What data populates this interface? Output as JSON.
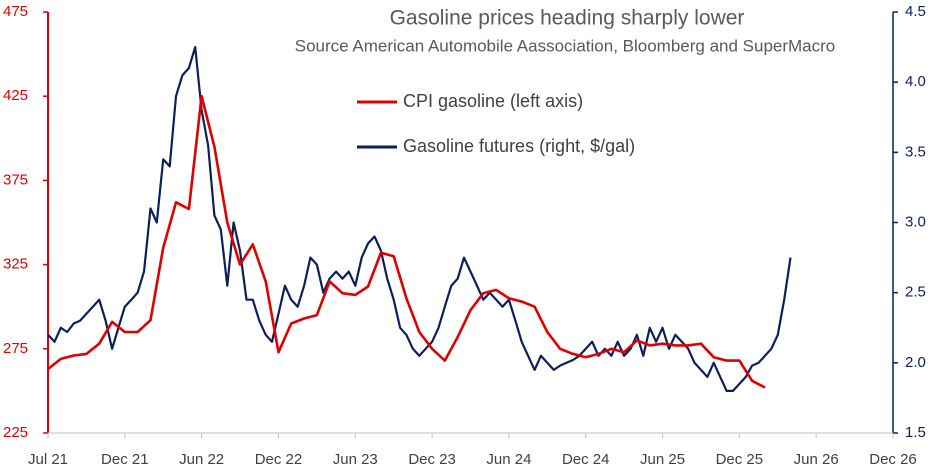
{
  "chart_data": {
    "type": "line",
    "title": "Gasoline prices heading sharply lower",
    "subtitle": "Source American Automobile Aassociation, Bloomberg and SuperMacro",
    "xlim": [
      2021.5,
      2027.0
    ],
    "xticks": [
      {
        "value": 2021.5,
        "label": "Jul 21"
      },
      {
        "value": 2022.0,
        "label": "Dec 21"
      },
      {
        "value": 2022.5,
        "label": "Jun 22"
      },
      {
        "value": 2023.0,
        "label": "Dec 22"
      },
      {
        "value": 2023.5,
        "label": "Jun 23"
      },
      {
        "value": 2024.0,
        "label": "Dec 23"
      },
      {
        "value": 2024.5,
        "label": "Jun 24"
      },
      {
        "value": 2025.0,
        "label": "Dec 24"
      },
      {
        "value": 2025.5,
        "label": "Jun 25"
      },
      {
        "value": 2026.0,
        "label": "Dec 25"
      },
      {
        "value": 2026.5,
        "label": "Jun 26"
      },
      {
        "value": 2027.0,
        "label": "Dec 26"
      }
    ],
    "ylim": [
      225,
      475
    ],
    "yticks": [
      225,
      275,
      325,
      375,
      425,
      475
    ],
    "y2lim": [
      1.5,
      4.5
    ],
    "y2ticks": [
      1.5,
      {
        "value": 2.0,
        "label": "2.0"
      },
      2.5,
      {
        "value": 3.0,
        "label": "3.0"
      },
      3.5,
      {
        "value": 4.0,
        "label": "4.0"
      },
      4.5
    ],
    "left_axis_color": "#e00000",
    "right_axis_color": "#0c1f5c",
    "series": [
      {
        "name": "CPI gasoline (left axis)",
        "color": "#e00000",
        "axis": "y",
        "x": [
          2021.5,
          2021.583,
          2021.667,
          2021.75,
          2021.833,
          2021.917,
          2022,
          2022.083,
          2022.167,
          2022.25,
          2022.333,
          2022.417,
          2022.5,
          2022.583,
          2022.667,
          2022.75,
          2022.833,
          2022.917,
          2023,
          2023.083,
          2023.167,
          2023.25,
          2023.333,
          2023.417,
          2023.5,
          2023.583,
          2023.667,
          2023.75,
          2023.833,
          2023.917,
          2024,
          2024.083,
          2024.167,
          2024.25,
          2024.333,
          2024.417,
          2024.5,
          2024.583,
          2024.667,
          2024.75,
          2024.833,
          2024.917,
          2025,
          2025.083,
          2025.167,
          2025.25,
          2025.333,
          2025.417,
          2025.5,
          2025.583,
          2025.667,
          2025.75,
          2025.833,
          2025.917,
          2026,
          2026.083,
          2026.167
        ],
        "values": [
          263,
          269,
          271,
          272,
          278,
          291,
          285,
          285,
          292,
          335,
          362,
          358,
          425,
          395,
          350,
          325,
          337,
          315,
          273,
          290,
          293,
          295,
          315,
          308,
          307,
          312,
          332,
          330,
          305,
          285,
          275,
          268,
          282,
          298,
          308,
          310,
          305,
          303,
          300,
          285,
          275,
          272,
          270,
          272,
          275,
          273,
          280,
          277,
          278,
          277,
          277,
          278,
          270,
          268,
          268,
          256,
          252
        ]
      },
      {
        "name": "Gasoline futures (right, $/gal)",
        "color": "#0c1f5c",
        "axis": "y2",
        "x": [
          2021.5,
          2021.542,
          2021.583,
          2021.625,
          2021.667,
          2021.708,
          2021.75,
          2021.792,
          2021.833,
          2021.875,
          2021.917,
          2021.958,
          2022,
          2022.042,
          2022.083,
          2022.125,
          2022.167,
          2022.208,
          2022.25,
          2022.292,
          2022.333,
          2022.375,
          2022.417,
          2022.458,
          2022.5,
          2022.542,
          2022.583,
          2022.625,
          2022.667,
          2022.708,
          2022.75,
          2022.792,
          2022.833,
          2022.875,
          2022.917,
          2022.958,
          2023,
          2023.042,
          2023.083,
          2023.125,
          2023.167,
          2023.208,
          2023.25,
          2023.292,
          2023.333,
          2023.375,
          2023.417,
          2023.458,
          2023.5,
          2023.542,
          2023.583,
          2023.625,
          2023.667,
          2023.708,
          2023.75,
          2023.792,
          2023.833,
          2023.875,
          2023.917,
          2023.958,
          2024,
          2024.042,
          2024.083,
          2024.125,
          2024.167,
          2024.208,
          2024.25,
          2024.292,
          2024.333,
          2024.375,
          2024.417,
          2024.458,
          2024.5,
          2024.542,
          2024.583,
          2024.625,
          2024.667,
          2024.708,
          2024.75,
          2024.792,
          2024.833,
          2024.875,
          2024.917,
          2024.958,
          2025,
          2025.042,
          2025.083,
          2025.125,
          2025.167,
          2025.208,
          2025.25,
          2025.292,
          2025.333,
          2025.375,
          2025.417,
          2025.458,
          2025.5,
          2025.542,
          2025.583,
          2025.625,
          2025.667,
          2025.708,
          2025.75,
          2025.792,
          2025.833,
          2025.875,
          2025.917,
          2025.958,
          2026,
          2026.042,
          2026.083,
          2026.125,
          2026.167,
          2026.208,
          2026.25,
          2026.292,
          2026.333
        ],
        "values": [
          2.2,
          2.15,
          2.25,
          2.22,
          2.28,
          2.3,
          2.35,
          2.4,
          2.45,
          2.3,
          2.1,
          2.25,
          2.4,
          2.45,
          2.5,
          2.65,
          3.1,
          3.0,
          3.45,
          3.4,
          3.9,
          4.05,
          4.1,
          4.25,
          3.8,
          3.55,
          3.05,
          2.95,
          2.55,
          3.0,
          2.8,
          2.45,
          2.45,
          2.3,
          2.2,
          2.15,
          2.35,
          2.55,
          2.45,
          2.4,
          2.55,
          2.75,
          2.7,
          2.5,
          2.6,
          2.65,
          2.6,
          2.65,
          2.55,
          2.75,
          2.85,
          2.9,
          2.8,
          2.6,
          2.45,
          2.25,
          2.2,
          2.1,
          2.05,
          2.1,
          2.15,
          2.25,
          2.4,
          2.55,
          2.6,
          2.75,
          2.65,
          2.55,
          2.45,
          2.5,
          2.45,
          2.4,
          2.45,
          2.3,
          2.15,
          2.05,
          1.95,
          2.05,
          2.0,
          1.95,
          1.98,
          2.0,
          2.02,
          2.05,
          2.1,
          2.15,
          2.05,
          2.1,
          2.05,
          2.15,
          2.05,
          2.1,
          2.2,
          2.05,
          2.25,
          2.15,
          2.25,
          2.1,
          2.2,
          2.15,
          2.1,
          2.0,
          1.95,
          1.9,
          2.0,
          1.9,
          1.8,
          1.8,
          1.85,
          1.9,
          1.98,
          2.0,
          2.05,
          2.1,
          2.2,
          2.45,
          2.75
        ]
      }
    ]
  }
}
